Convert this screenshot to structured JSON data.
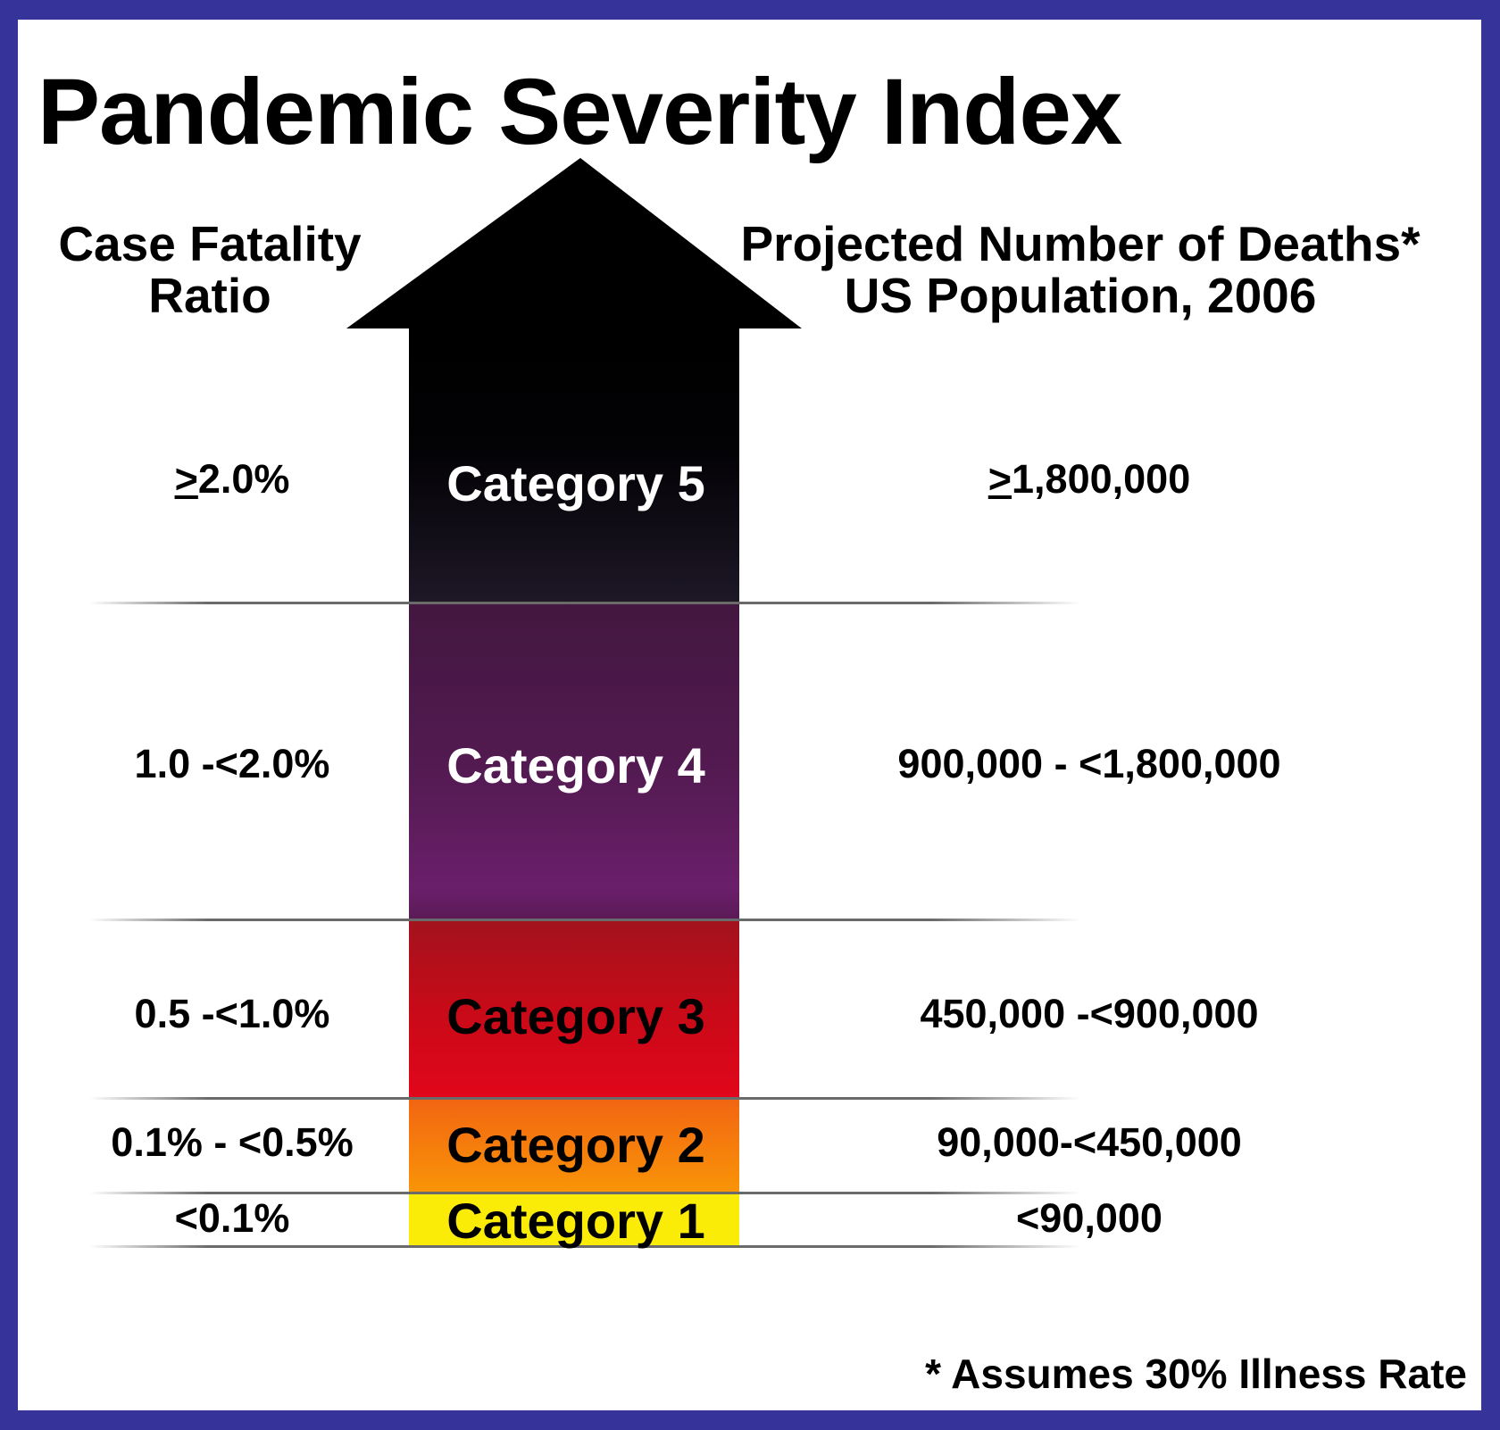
{
  "title": "Pandemic Severity Index",
  "left_header": {
    "line1": "Case Fatality",
    "line2": "Ratio"
  },
  "right_header": {
    "line1": "Projected Number of Deaths*",
    "line2": "US Population, 2006"
  },
  "categories": [
    {
      "label": "Category 5",
      "cfr_symbol": ">",
      "cfr_rest": "2.0%",
      "deaths_symbol": ">",
      "deaths_rest": "1,800,000",
      "color": "#17131e",
      "text_color": "#ffffff"
    },
    {
      "label": "Category 4",
      "cfr": "1.0 -<2.0%",
      "deaths": "900,000 - <1,800,000",
      "color": "#5b1a5b",
      "text_color": "#ffffff"
    },
    {
      "label": "Category 3",
      "cfr": "0.5 -<1.0%",
      "deaths": "450,000 -<900,000",
      "color": "#c60a1a",
      "text_color": "#000000"
    },
    {
      "label": "Category 2",
      "cfr": "0.1% - <0.5%",
      "deaths": "90,000-<450,000",
      "color": "#f5820c",
      "text_color": "#000000"
    },
    {
      "label": "Category 1",
      "cfr": "<0.1%",
      "deaths": "<90,000",
      "color": "#fff200",
      "text_color": "#000000"
    }
  ],
  "footnote": "* Assumes 30% Illness Rate",
  "colors": {
    "border": "#36349a",
    "background": "#ffffff"
  }
}
